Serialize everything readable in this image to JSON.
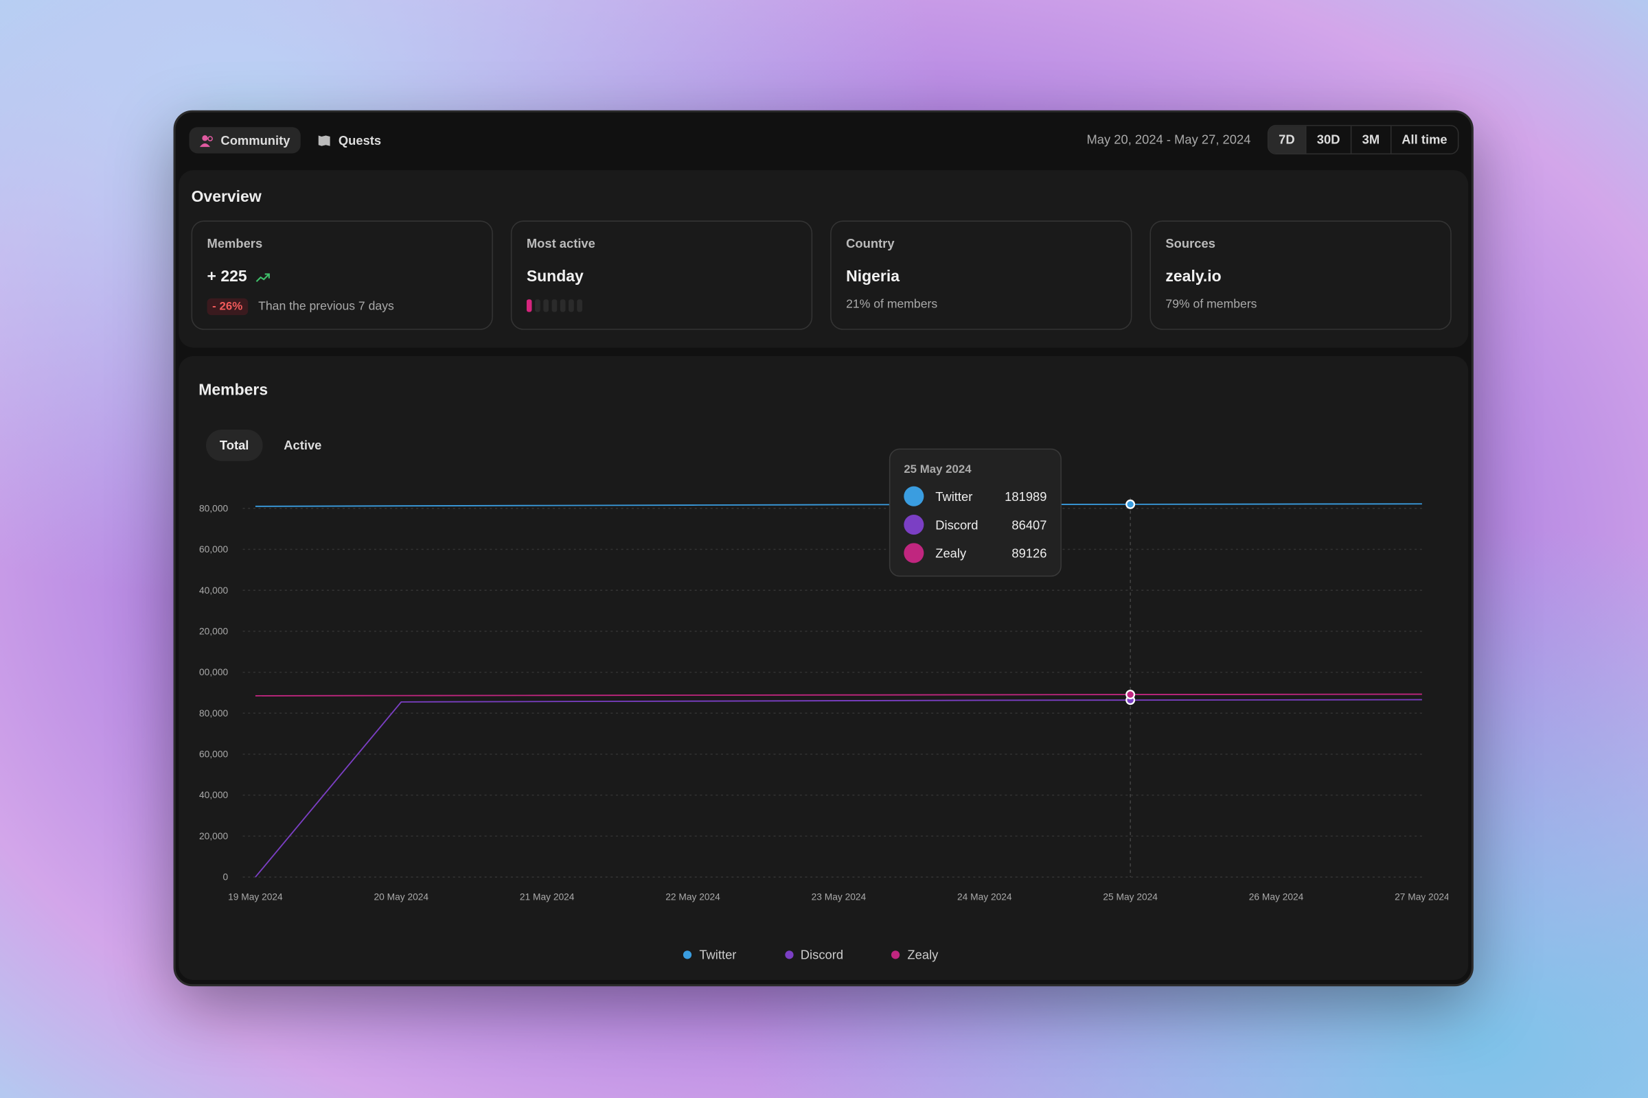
{
  "nav": {
    "tabs": [
      "Community",
      "Quests"
    ],
    "date_range": "May 20, 2024 - May 27, 2024",
    "ranges": [
      "7D",
      "30D",
      "3M",
      "All time"
    ]
  },
  "overview": {
    "title": "Overview",
    "cards": [
      {
        "label": "Members",
        "value": "+ 225",
        "change": "- 26%",
        "note": "Than the previous 7 days"
      },
      {
        "label": "Most active",
        "value": "Sunday"
      },
      {
        "label": "Country",
        "value": "Nigeria",
        "note": "21% of members"
      },
      {
        "label": "Sources",
        "value": "zealy.io",
        "note": "79% of members"
      }
    ]
  },
  "members": {
    "title": "Members",
    "tabs": [
      "Total",
      "Active"
    ]
  },
  "chart_data": {
    "type": "line",
    "categories": [
      "19 May 2024",
      "20 May 2024",
      "21 May 2024",
      "22 May 2024",
      "23 May 2024",
      "24 May 2024",
      "25 May 2024",
      "26 May 2024",
      "27 May 2024"
    ],
    "series": [
      {
        "name": "Twitter",
        "color": "#3a9de0",
        "values": [
          181000,
          181200,
          181400,
          181600,
          181800,
          181900,
          181989,
          182100,
          182200
        ]
      },
      {
        "name": "Discord",
        "color": "#7b3fc4",
        "values": [
          0,
          85500,
          85700,
          85900,
          86100,
          86300,
          86407,
          86500,
          86600
        ]
      },
      {
        "name": "Zealy",
        "color": "#c0267f",
        "values": [
          88500,
          88600,
          88700,
          88800,
          88900,
          89000,
          89126,
          89200,
          89300
        ]
      }
    ],
    "ylim": [
      0,
      180000
    ],
    "yticks": [
      0,
      {
        "value": 20000,
        "label": "20,000"
      },
      {
        "value": 40000,
        "label": "40,000"
      },
      {
        "value": 60000,
        "label": "60,000"
      },
      {
        "value": 80000,
        "label": "80,000"
      },
      {
        "value": 100000,
        "label": "00,000"
      },
      {
        "value": 120000,
        "label": "20,000"
      },
      {
        "value": 140000,
        "label": "40,000"
      },
      {
        "value": 160000,
        "label": "60,000"
      },
      {
        "value": 180000,
        "label": "80,000"
      }
    ],
    "grid": true,
    "legend": "bottom"
  }
}
